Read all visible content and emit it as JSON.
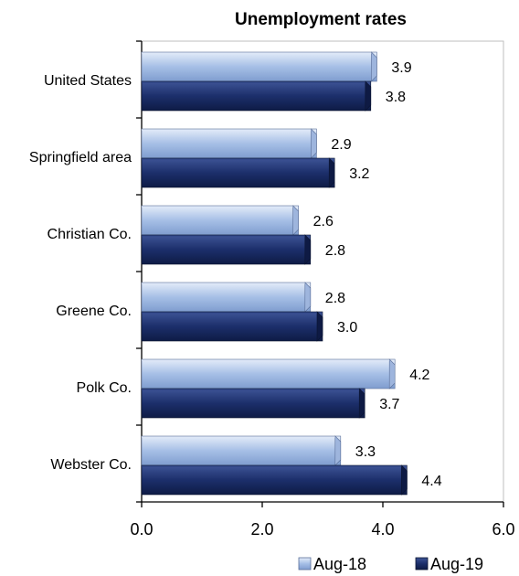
{
  "chart_data": {
    "type": "bar",
    "orientation": "horizontal",
    "title": "Unemployment rates",
    "categories": [
      "United States",
      "Springfield area",
      "Christian Co.",
      "Greene Co.",
      "Polk Co.",
      "Webster Co."
    ],
    "series": [
      {
        "name": "Aug-18",
        "values": [
          3.9,
          2.9,
          2.6,
          2.8,
          4.2,
          3.3
        ],
        "value_labels": [
          "3.9",
          "2.9",
          "2.6",
          "2.8",
          "4.2",
          "3.3"
        ],
        "color": "#a6bfe6"
      },
      {
        "name": "Aug-19",
        "values": [
          3.8,
          3.2,
          2.8,
          3.0,
          3.7,
          4.4
        ],
        "value_labels": [
          "3.8",
          "3.2",
          "2.8",
          "3.0",
          "3.7",
          "4.4"
        ],
        "color": "#1c2f6b"
      }
    ],
    "xlim": [
      0,
      6
    ],
    "xticks": [
      "0.0",
      "2.0",
      "4.0",
      "6.0"
    ],
    "xlabel": "",
    "ylabel": "",
    "grid": false,
    "legend": "bottom-right"
  }
}
